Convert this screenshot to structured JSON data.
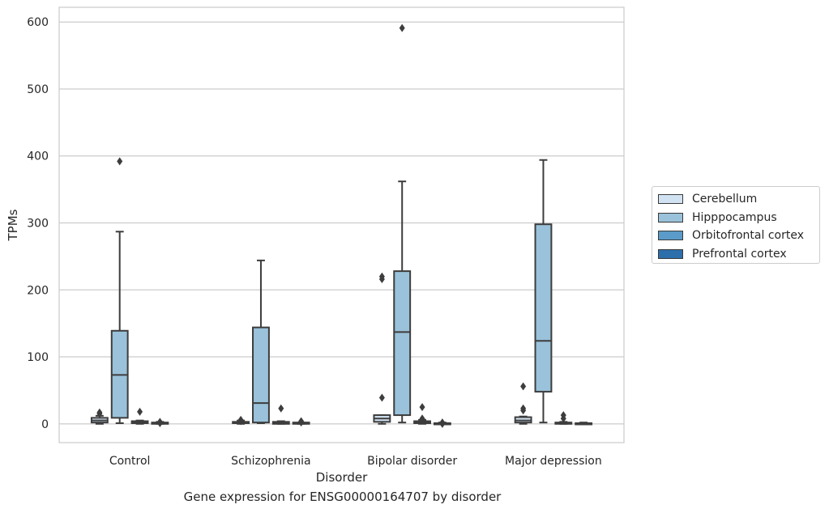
{
  "chart_data": {
    "type": "box",
    "title": "",
    "caption": "Gene expression for ENSG00000164707 by disorder",
    "xlabel": "Disorder",
    "ylabel": "TPMs",
    "ylim": [
      -28,
      622
    ],
    "yticks": [
      0,
      100,
      200,
      300,
      400,
      500,
      600
    ],
    "grid": "horizontal",
    "legend_position": "right",
    "categories": [
      "Control",
      "Schizophrenia",
      "Bipolar disorder",
      "Major depression"
    ],
    "series": [
      {
        "name": "Cerebellum",
        "color": "#d1e2f2",
        "boxes": [
          {
            "q1": 2,
            "median": 5,
            "q3": 9,
            "whisker_low": 0,
            "whisker_high": 12,
            "outliers": [
              17,
              15
            ]
          },
          {
            "q1": 1,
            "median": 2,
            "q3": 3,
            "whisker_low": 0,
            "whisker_high": 5,
            "outliers": [
              6,
              4
            ]
          },
          {
            "q1": 3,
            "median": 8,
            "q3": 13,
            "whisker_low": 0,
            "whisker_high": 13,
            "outliers": [
              220,
              216,
              39
            ]
          },
          {
            "q1": 2,
            "median": 5,
            "q3": 10,
            "whisker_low": 0,
            "whisker_high": 11,
            "outliers": [
              56,
              23,
              20
            ]
          }
        ]
      },
      {
        "name": "Hipppocampus",
        "color": "#9ac2da",
        "boxes": [
          {
            "q1": 9,
            "median": 73,
            "q3": 139,
            "whisker_low": 1,
            "whisker_high": 287,
            "outliers": [
              392
            ]
          },
          {
            "q1": 2,
            "median": 31,
            "q3": 144,
            "whisker_low": 1,
            "whisker_high": 244,
            "outliers": []
          },
          {
            "q1": 13,
            "median": 137,
            "q3": 228,
            "whisker_low": 2,
            "whisker_high": 362,
            "outliers": [
              591
            ]
          },
          {
            "q1": 48,
            "median": 124,
            "q3": 298,
            "whisker_low": 2,
            "whisker_high": 394,
            "outliers": []
          }
        ]
      },
      {
        "name": "Orbitofrontal cortex",
        "color": "#5a9bc9",
        "boxes": [
          {
            "q1": 1,
            "median": 2,
            "q3": 4,
            "whisker_low": 0,
            "whisker_high": 5,
            "outliers": [
              18
            ]
          },
          {
            "q1": 0,
            "median": 1,
            "q3": 3,
            "whisker_low": 0,
            "whisker_high": 4,
            "outliers": [
              23
            ]
          },
          {
            "q1": 1,
            "median": 2,
            "q3": 4,
            "whisker_low": 0,
            "whisker_high": 6,
            "outliers": [
              25,
              8,
              6
            ]
          },
          {
            "q1": 0,
            "median": 1,
            "q3": 2,
            "whisker_low": 0,
            "whisker_high": 3,
            "outliers": [
              13,
              8
            ]
          }
        ]
      },
      {
        "name": "Prefrontal cortex",
        "color": "#2c6fab",
        "boxes": [
          {
            "q1": 0,
            "median": 1,
            "q3": 2,
            "whisker_low": 0,
            "whisker_high": 3,
            "outliers": [
              3,
              1
            ]
          },
          {
            "q1": 0,
            "median": 1,
            "q3": 2,
            "whisker_low": 0,
            "whisker_high": 2,
            "outliers": [
              4,
              2
            ]
          },
          {
            "q1": 0,
            "median": 1,
            "q3": 1,
            "whisker_low": 0,
            "whisker_high": 2,
            "outliers": [
              2,
              0
            ]
          },
          {
            "q1": 0,
            "median": 1,
            "q3": 1,
            "whisker_low": 0,
            "whisker_high": 2,
            "outliers": []
          }
        ]
      }
    ]
  }
}
